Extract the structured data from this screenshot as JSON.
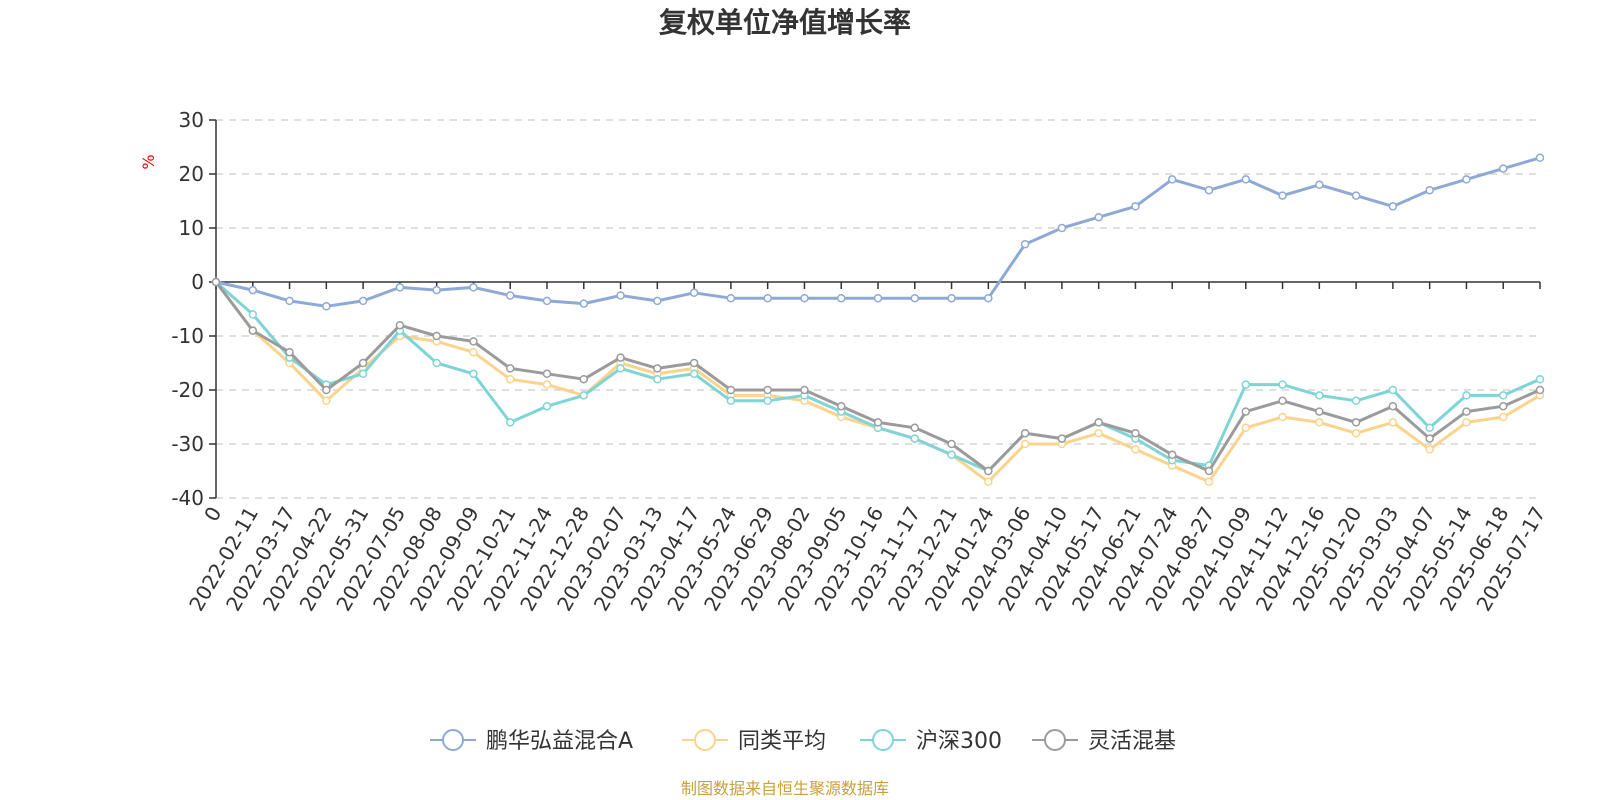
{
  "chart_data": {
    "type": "line",
    "title": "复权单位净值增长率",
    "ylabel": "%",
    "ylim": [
      -40,
      30
    ],
    "yticks": [
      30,
      20,
      10,
      0,
      -10,
      -20,
      -30,
      -40
    ],
    "grid": true,
    "legend_position": "bottom",
    "x_tick_labels": [
      "0",
      "2022-02-11",
      "2022-03-17",
      "2022-04-22",
      "2022-05-31",
      "2022-07-05",
      "2022-08-08",
      "2022-09-09",
      "2022-10-21",
      "2022-11-24",
      "2022-12-28",
      "2023-02-07",
      "2023-03-13",
      "2023-04-17",
      "2023-05-24",
      "2023-06-29",
      "2023-08-02",
      "2023-09-05",
      "2023-10-16",
      "2023-11-17",
      "2023-12-21",
      "2024-01-24",
      "2024-03-06",
      "2024-04-10",
      "2024-05-17",
      "2024-06-21",
      "2024-07-24",
      "2024-08-27",
      "2024-10-09",
      "2024-11-12",
      "2024-12-16",
      "2025-01-20",
      "2025-03-03",
      "2025-04-07",
      "2025-05-14",
      "2025-06-18",
      "2025-07-17"
    ],
    "series": [
      {
        "name": "鹏华弘益混合A",
        "color": "#8ea9d8",
        "values": [
          0,
          -1.5,
          -3.5,
          -4.5,
          -3.5,
          -1,
          -1.5,
          -1,
          -2.5,
          -3.5,
          -4,
          -2.5,
          -3.5,
          -2,
          -3,
          -3,
          -3,
          -3,
          -3,
          -3,
          -3,
          -3,
          7,
          10,
          12,
          14,
          19,
          17,
          19,
          16,
          18,
          16,
          14,
          17,
          19,
          21,
          23
        ]
      },
      {
        "name": "同类平均",
        "color": "#fcd38d",
        "values": [
          0,
          -9,
          -15,
          -22,
          -16,
          -10,
          -11,
          -13,
          -18,
          -19,
          -21,
          -15,
          -17,
          -16,
          -21,
          -21,
          -22,
          -25,
          -27,
          -29,
          -32,
          -37,
          -30,
          -30,
          -28,
          -31,
          -34,
          -37,
          -27,
          -25,
          -26,
          -28,
          -26,
          -31,
          -26,
          -25,
          -21
        ]
      },
      {
        "name": "沪深300",
        "color": "#7fd4d6",
        "values": [
          0,
          -6,
          -14,
          -19,
          -17,
          -9,
          -15,
          -17,
          -26,
          -23,
          -21,
          -16,
          -18,
          -17,
          -22,
          -22,
          -21,
          -24,
          -27,
          -29,
          -32,
          -35,
          -28,
          -29,
          -26,
          -29,
          -33,
          -34,
          -19,
          -19,
          -21,
          -22,
          -20,
          -27,
          -21,
          -21,
          -18
        ]
      },
      {
        "name": "灵活混基",
        "color": "#9b9b9b",
        "values": [
          0,
          -9,
          -13,
          -20,
          -15,
          -8,
          -10,
          -11,
          -16,
          -17,
          -18,
          -14,
          -16,
          -15,
          -20,
          -20,
          -20,
          -23,
          -26,
          -27,
          -30,
          -35,
          -28,
          -29,
          -26,
          -28,
          -32,
          -35,
          -24,
          -22,
          -24,
          -26,
          -23,
          -29,
          -24,
          -23,
          -20
        ]
      }
    ]
  },
  "footer": {
    "source": "制图数据来自恒生聚源数据库"
  }
}
